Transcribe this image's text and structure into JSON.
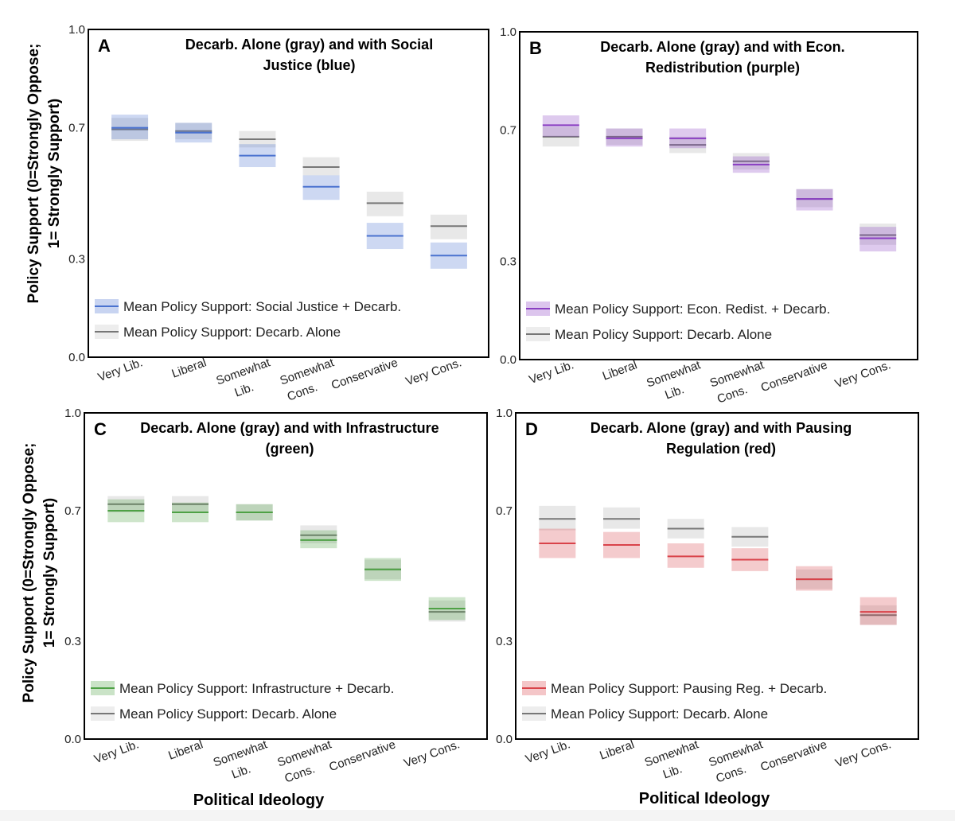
{
  "figure": {
    "ylabel_line1": "Policy Support (0=Strongly Oppose;",
    "ylabel_line2": "1= Strongly Support)",
    "xlabel": "Political Ideology",
    "legend_gray_label": "Mean Policy Support: Decarb. Alone"
  },
  "colors": {
    "gray_line": "#777777",
    "gray_fill": "#cccccc",
    "blue": "#4a72cf",
    "purple": "#8a3fc2",
    "green": "#4ea145",
    "red": "#d9434a",
    "frame": "#000000"
  },
  "chart_data": [
    {
      "panel": "A",
      "type": "line",
      "title_line1": "Decarb. Alone (gray) and with Social",
      "title_line2": "Justice (blue)",
      "categories": [
        "Very Lib.",
        "Liberal",
        "Somewhat Lib.",
        "Somewhat Cons.",
        "Conservative",
        "Very Cons."
      ],
      "yticks": [
        "1.0",
        "0.7",
        "0.3",
        "0.0"
      ],
      "ylim": [
        0,
        1
      ],
      "legend": "bottom-left",
      "series": [
        {
          "name": "Mean Policy Support: Social Justice + Decarb.",
          "color_key": "blue",
          "values": [
            0.7,
            0.685,
            0.615,
            0.52,
            0.37,
            0.31
          ],
          "lower": [
            0.665,
            0.655,
            0.58,
            0.48,
            0.33,
            0.27
          ],
          "upper": [
            0.74,
            0.715,
            0.65,
            0.555,
            0.41,
            0.35
          ]
        },
        {
          "name": "Mean Policy Support: Decarb. Alone",
          "color_key": "gray",
          "values": [
            0.695,
            0.69,
            0.665,
            0.58,
            0.47,
            0.4
          ],
          "lower": [
            0.66,
            0.665,
            0.64,
            0.555,
            0.43,
            0.36
          ],
          "upper": [
            0.73,
            0.715,
            0.69,
            0.61,
            0.505,
            0.435
          ]
        }
      ]
    },
    {
      "panel": "B",
      "type": "line",
      "title_line1": "Decarb. Alone (gray) and with Econ.",
      "title_line2": "Redistribution (purple)",
      "categories": [
        "Very Lib.",
        "Liberal",
        "Somewhat Lib.",
        "Somewhat Cons.",
        "Conservative",
        "Very Cons."
      ],
      "yticks": [
        "1.0",
        "0.7",
        "0.3",
        "0.0"
      ],
      "ylim": [
        0,
        1
      ],
      "legend": "bottom-left",
      "series": [
        {
          "name": "Mean Policy Support: Econ. Redist. + Decarb.",
          "color_key": "purple",
          "values": [
            0.715,
            0.675,
            0.675,
            0.595,
            0.49,
            0.37
          ],
          "lower": [
            0.68,
            0.65,
            0.645,
            0.57,
            0.455,
            0.33
          ],
          "upper": [
            0.745,
            0.705,
            0.705,
            0.62,
            0.52,
            0.405
          ]
        },
        {
          "name": "Mean Policy Support: Decarb. Alone",
          "color_key": "gray",
          "values": [
            0.68,
            0.68,
            0.655,
            0.605,
            0.49,
            0.38
          ],
          "lower": [
            0.65,
            0.655,
            0.63,
            0.58,
            0.465,
            0.35
          ],
          "upper": [
            0.71,
            0.705,
            0.68,
            0.63,
            0.52,
            0.415
          ]
        }
      ]
    },
    {
      "panel": "C",
      "type": "line",
      "title_line1": "Decarb. Alone (gray) and with Infrastructure",
      "title_line2": "(green)",
      "categories": [
        "Very Lib.",
        "Liberal",
        "Somewhat Lib.",
        "Somewhat Cons.",
        "Conservative",
        "Very Cons."
      ],
      "yticks": [
        "1.0",
        "0.7",
        "0.3",
        "0.0"
      ],
      "ylim": [
        0,
        1
      ],
      "legend": "bottom-left",
      "series": [
        {
          "name": "Mean Policy Support: Infrastructure + Decarb.",
          "color_key": "green",
          "values": [
            0.7,
            0.695,
            0.695,
            0.61,
            0.52,
            0.4
          ],
          "lower": [
            0.665,
            0.665,
            0.67,
            0.585,
            0.485,
            0.365
          ],
          "upper": [
            0.735,
            0.725,
            0.72,
            0.64,
            0.555,
            0.435
          ]
        },
        {
          "name": "Mean Policy Support: Decarb. Alone",
          "color_key": "gray",
          "values": [
            0.72,
            0.72,
            0.695,
            0.625,
            0.52,
            0.39
          ],
          "lower": [
            0.695,
            0.695,
            0.67,
            0.6,
            0.49,
            0.36
          ],
          "upper": [
            0.745,
            0.745,
            0.72,
            0.655,
            0.55,
            0.425
          ]
        }
      ]
    },
    {
      "panel": "D",
      "type": "line",
      "title_line1": "Decarb. Alone (gray) and with Pausing",
      "title_line2": "Regulation (red)",
      "categories": [
        "Very Lib.",
        "Liberal",
        "Somewhat Lib.",
        "Somewhat Cons.",
        "Conservative",
        "Very Cons."
      ],
      "yticks": [
        "1.0",
        "0.7",
        "0.3",
        "0.0"
      ],
      "ylim": [
        0,
        1
      ],
      "legend": "bottom-left",
      "series": [
        {
          "name": "Mean Policy Support: Pausing Reg. + Decarb.",
          "color_key": "red",
          "values": [
            0.6,
            0.595,
            0.56,
            0.55,
            0.49,
            0.39
          ],
          "lower": [
            0.555,
            0.555,
            0.525,
            0.515,
            0.455,
            0.35
          ],
          "upper": [
            0.645,
            0.635,
            0.6,
            0.585,
            0.53,
            0.435
          ]
        },
        {
          "name": "Mean Policy Support: Decarb. Alone",
          "color_key": "gray",
          "values": [
            0.675,
            0.675,
            0.645,
            0.62,
            0.49,
            0.38
          ],
          "lower": [
            0.64,
            0.645,
            0.615,
            0.59,
            0.46,
            0.35
          ],
          "upper": [
            0.715,
            0.71,
            0.675,
            0.65,
            0.52,
            0.41
          ]
        }
      ]
    }
  ]
}
